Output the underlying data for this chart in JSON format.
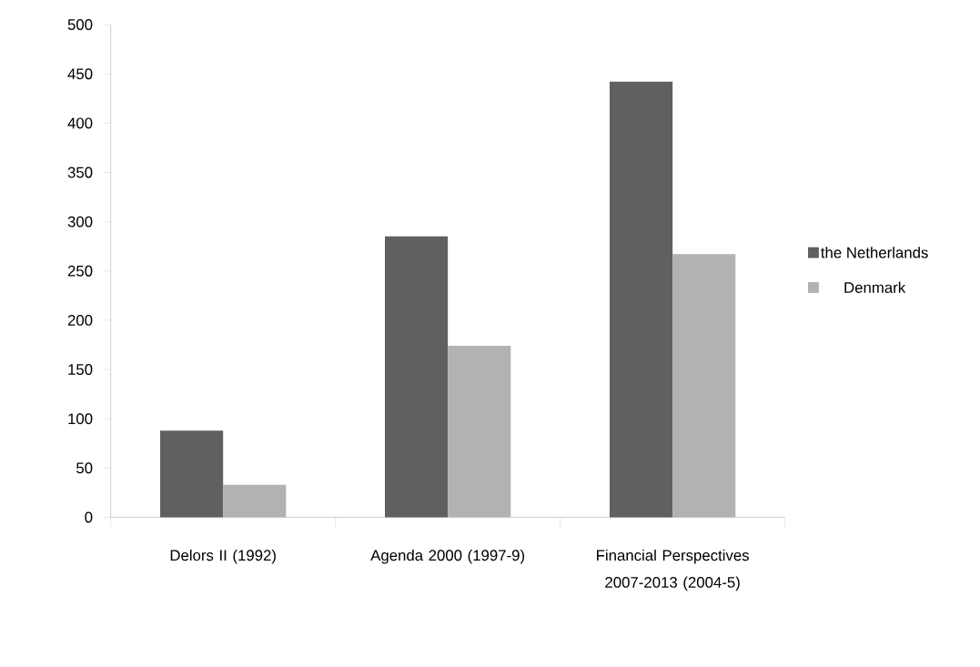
{
  "chart_data": {
    "type": "bar",
    "categories": [
      "Delors II (1992)",
      "Agenda 2000 (1997-9)",
      "Financial Perspectives 2007-2013 (2004-5)"
    ],
    "series": [
      {
        "name": "the Netherlands",
        "color": "#606060",
        "values": [
          88,
          285,
          442
        ]
      },
      {
        "name": "Denmark",
        "color": "#b2b2b2",
        "values": [
          33,
          174,
          267
        ]
      }
    ],
    "ylim": [
      0,
      500
    ],
    "yticks": [
      0,
      50,
      100,
      150,
      200,
      250,
      300,
      350,
      400,
      450,
      500
    ],
    "legend": "right"
  }
}
